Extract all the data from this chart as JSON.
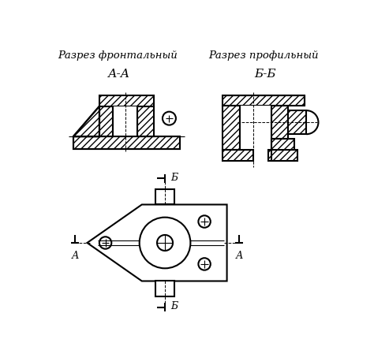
{
  "title_left": "Разрез фронтальный",
  "title_right": "Разрез профильный",
  "label_aa": "А-А",
  "label_bb": "Б-Б",
  "label_a": "А",
  "label_b": "Б",
  "bg_color": "#ffffff",
  "line_color": "#000000",
  "figsize": [
    4.74,
    4.49
  ],
  "dpi": 100
}
